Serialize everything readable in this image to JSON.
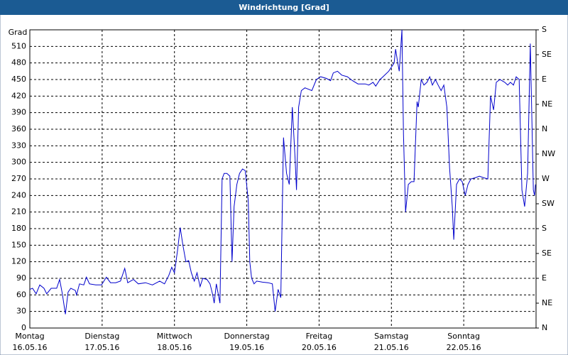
{
  "chart_data": {
    "type": "line",
    "title": "Windrichtung [Grad]",
    "y_label": "Grad",
    "xlim": [
      0,
      168
    ],
    "xticks": [
      {
        "value": 0,
        "label": "16.05.16",
        "day": "Montag"
      },
      {
        "value": 24,
        "label": "17.05.16",
        "day": "Dienstag"
      },
      {
        "value": 48,
        "label": "18.05.16",
        "day": "Mittwoch"
      },
      {
        "value": 72,
        "label": "19.05.16",
        "day": "Donnerstag"
      },
      {
        "value": 96,
        "label": "20.05.16",
        "day": "Freitag"
      },
      {
        "value": 120,
        "label": "21.05.16",
        "day": "Samstag"
      },
      {
        "value": 144,
        "label": "22.05.16",
        "day": "Sonntag"
      }
    ],
    "ylim": [
      0,
      540
    ],
    "yticks": [
      0,
      30,
      60,
      90,
      120,
      150,
      180,
      210,
      240,
      270,
      300,
      330,
      360,
      390,
      420,
      450,
      480,
      510
    ],
    "y2lim": [
      0,
      540
    ],
    "y2ticks": [
      {
        "value": 0,
        "label": "N"
      },
      {
        "value": 45,
        "label": "NE"
      },
      {
        "value": 90,
        "label": "E"
      },
      {
        "value": 135,
        "label": "SE"
      },
      {
        "value": 180,
        "label": "S"
      },
      {
        "value": 225,
        "label": "SW"
      },
      {
        "value": 270,
        "label": "W"
      },
      {
        "value": 315,
        "label": "NW"
      },
      {
        "value": 360,
        "label": "N"
      },
      {
        "value": 405,
        "label": "NE"
      },
      {
        "value": 450,
        "label": "E"
      },
      {
        "value": 495,
        "label": "SE"
      },
      {
        "value": 540,
        "label": "S"
      }
    ],
    "grid": true,
    "series": [
      {
        "color": "#0000cc",
        "x": [
          0,
          0.9,
          2.1,
          3.3,
          4.7,
          5.6,
          7.1,
          8.9,
          9.9,
          10.8,
          11.8,
          12.7,
          13.6,
          15.1,
          15.5,
          16.5,
          17.9,
          18.8,
          19.8,
          21.9,
          23.8,
          25.4,
          26.8,
          28.5,
          30.1,
          31.5,
          32.5,
          34.4,
          36,
          38.4,
          40.7,
          43.1,
          44.7,
          46.1,
          47.1,
          48,
          49,
          49.9,
          50.8,
          51.8,
          52.7,
          53.6,
          54.6,
          55.5,
          56.5,
          57.4,
          58.8,
          59.8,
          60.7,
          61.2,
          61.9,
          63.1,
          63.8,
          64.5,
          65.4,
          66.4,
          67.1,
          67.8,
          68.7,
          69.6,
          70.6,
          71.5,
          72.5,
          73,
          73.6,
          74.4,
          75.3,
          77.2,
          79.1,
          80.5,
          81.4,
          82.4,
          83.3,
          84.2,
          85.2,
          86.1,
          87.1,
          88,
          88.5,
          89.2,
          90.1,
          91.3,
          93.6,
          95.1,
          96.5,
          98.4,
          99.8,
          100.7,
          102.1,
          103.5,
          105.4,
          107.1,
          108.9,
          111.3,
          112.5,
          113.9,
          114.8,
          116.2,
          117.2,
          119.1,
          120.9,
          121.4,
          122.1,
          122.6,
          123.5,
          124,
          124.7,
          125.6,
          126.6,
          127.5,
          128.5,
          128.9,
          129.9,
          130.8,
          131.8,
          132.7,
          133.6,
          134.6,
          135.5,
          136.5,
          137.4,
          138.4,
          139.3,
          140.2,
          140.7,
          141.6,
          142.6,
          143.5,
          144.5,
          145.4,
          146.4,
          147.8,
          149.2,
          150.6,
          152,
          152.9,
          153.9,
          154.8,
          156,
          157.6,
          158.6,
          159.5,
          160.5,
          161.4,
          162.4,
          163.3,
          164.2,
          165.2,
          166.1,
          167.1,
          167.5,
          167.8
        ],
        "values": [
          70,
          72,
          62,
          78,
          72,
          62,
          72,
          72,
          88,
          62,
          25,
          65,
          72,
          68,
          60,
          80,
          78,
          92,
          80,
          78,
          78,
          92,
          82,
          82,
          85,
          108,
          82,
          88,
          80,
          82,
          78,
          85,
          80,
          95,
          110,
          100,
          140,
          182,
          150,
          120,
          122,
          100,
          85,
          100,
          75,
          90,
          88,
          80,
          60,
          45,
          80,
          45,
          270,
          280,
          280,
          275,
          120,
          220,
          260,
          280,
          288,
          285,
          230,
          120,
          90,
          80,
          85,
          83,
          82,
          80,
          30,
          70,
          55,
          345,
          280,
          260,
          400,
          310,
          250,
          400,
          430,
          435,
          430,
          450,
          455,
          452,
          448,
          462,
          465,
          458,
          455,
          448,
          442,
          442,
          440,
          445,
          438,
          450,
          455,
          465,
          480,
          505,
          480,
          465,
          540,
          350,
          210,
          260,
          265,
          265,
          410,
          400,
          450,
          440,
          445,
          455,
          440,
          450,
          440,
          430,
          440,
          400,
          290,
          220,
          160,
          260,
          270,
          265,
          240,
          260,
          270,
          272,
          275,
          272,
          270,
          420,
          395,
          445,
          450,
          445,
          440,
          445,
          440,
          455,
          450,
          250,
          220,
          280,
          515,
          250,
          240,
          260
        ]
      }
    ]
  }
}
